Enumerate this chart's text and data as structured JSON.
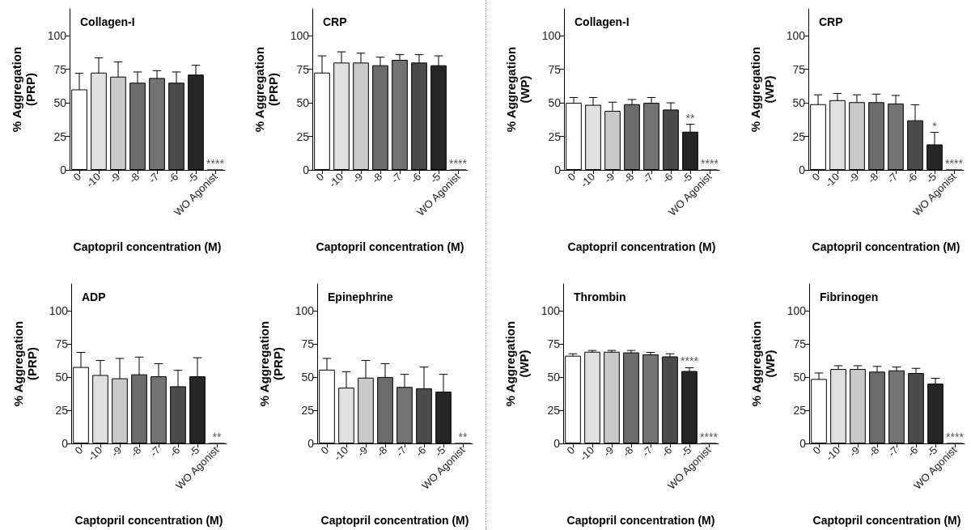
{
  "chart_data": [
    {
      "type": "bar",
      "title": "Collagen-I",
      "xlabel": "Captopril concentration (M)",
      "ylabel": "% Aggregation\n(PRP)",
      "categories": [
        "0",
        "-10",
        "-9",
        "-8",
        "-7",
        "-6",
        "-5",
        "WO Agonist"
      ],
      "values": [
        60,
        72.5,
        69.5,
        65,
        68.5,
        65,
        71,
        0
      ],
      "errors": [
        12,
        11,
        11,
        8,
        5.5,
        8,
        7,
        null
      ],
      "colors": [
        "#ffffff",
        "#e0e0e0",
        "#c9c9c9",
        "#6c6c6c",
        "#737373",
        "#4b4b4b",
        "#262626",
        "#262626"
      ],
      "ylim": [
        0,
        120
      ],
      "yticks": [
        0,
        25,
        50,
        75,
        100
      ],
      "annotations": [
        {
          "text": "****",
          "x": "WO Agonist",
          "y": 0
        }
      ]
    },
    {
      "type": "bar",
      "title": "CRP",
      "xlabel": "Captopril concentration (M)",
      "ylabel": "% Aggregation\n(PRP)",
      "categories": [
        "0",
        "-10",
        "-9",
        "-8",
        "-7",
        "-6",
        "-5",
        "WO Agonist"
      ],
      "values": [
        72.5,
        80,
        80,
        78,
        82,
        80,
        78,
        0
      ],
      "errors": [
        12.5,
        8,
        7,
        6,
        4,
        6,
        7,
        null
      ],
      "colors": [
        "#ffffff",
        "#e0e0e0",
        "#c9c9c9",
        "#6c6c6c",
        "#737373",
        "#4b4b4b",
        "#262626",
        "#262626"
      ],
      "ylim": [
        0,
        120
      ],
      "yticks": [
        0,
        25,
        50,
        75,
        100
      ],
      "annotations": [
        {
          "text": "****",
          "x": "WO Agonist",
          "y": 0
        }
      ]
    },
    {
      "type": "bar",
      "title": "Collagen-I",
      "xlabel": "Captopril concentration (M)",
      "ylabel": "% Aggregation\n(WP)",
      "categories": [
        "0",
        "-10",
        "-9",
        "-8",
        "-7",
        "-6",
        "-5",
        "WO Agonist"
      ],
      "values": [
        50,
        48.5,
        44,
        49,
        50,
        45,
        28.5,
        0
      ],
      "errors": [
        4,
        5.5,
        6.5,
        3.5,
        4,
        5,
        5.5,
        null
      ],
      "colors": [
        "#ffffff",
        "#e0e0e0",
        "#c9c9c9",
        "#6c6c6c",
        "#737373",
        "#4b4b4b",
        "#262626",
        "#262626"
      ],
      "ylim": [
        0,
        120
      ],
      "yticks": [
        0,
        25,
        50,
        75,
        100
      ],
      "annotations": [
        {
          "text": "**",
          "x": "-5",
          "y": 28.5
        },
        {
          "text": "****",
          "x": "WO Agonist",
          "y": 0
        }
      ]
    },
    {
      "type": "bar",
      "title": "CRP",
      "xlabel": "Captopril concentration (M)",
      "ylabel": "% Aggregation\n(WP)",
      "categories": [
        "0",
        "-10",
        "-9",
        "-8",
        "-7",
        "-6",
        "-5",
        "WO Agonist"
      ],
      "values": [
        49,
        52,
        50.5,
        50.5,
        49.5,
        37,
        19,
        0
      ],
      "errors": [
        7,
        5,
        5.5,
        6,
        6,
        11.5,
        9,
        null
      ],
      "colors": [
        "#ffffff",
        "#e0e0e0",
        "#c9c9c9",
        "#6c6c6c",
        "#737373",
        "#4b4b4b",
        "#262626",
        "#262626"
      ],
      "ylim": [
        0,
        120
      ],
      "yticks": [
        0,
        25,
        50,
        75,
        100
      ],
      "annotations": [
        {
          "text": "*",
          "x": "-5",
          "y": 19
        },
        {
          "text": "****",
          "x": "WO Agonist",
          "y": 0
        }
      ]
    },
    {
      "type": "bar",
      "title": "ADP",
      "xlabel": "Captopril concentration (M)",
      "ylabel": "% Aggregation\n(PRP)",
      "categories": [
        "0",
        "-10",
        "-9",
        "-8",
        "-7",
        "-6",
        "-5",
        "WO Agonist"
      ],
      "values": [
        57.5,
        51.5,
        49,
        52,
        50.5,
        43,
        50.5,
        0
      ],
      "errors": [
        11,
        11,
        15,
        13,
        9.5,
        12,
        14,
        null
      ],
      "colors": [
        "#ffffff",
        "#e0e0e0",
        "#c9c9c9",
        "#6c6c6c",
        "#737373",
        "#4b4b4b",
        "#262626",
        "#262626"
      ],
      "ylim": [
        0,
        120
      ],
      "yticks": [
        0,
        25,
        50,
        75,
        100
      ],
      "annotations": [
        {
          "text": "**",
          "x": "WO Agonist",
          "y": 0
        }
      ]
    },
    {
      "type": "bar",
      "title": "Epinephrine",
      "xlabel": "Captopril concentration (M)",
      "ylabel": "% Aggregation\n(PRP)",
      "categories": [
        "0",
        "-10",
        "-9",
        "-8",
        "-7",
        "-6",
        "-5",
        "WO Agonist"
      ],
      "values": [
        55.5,
        42,
        49.5,
        50,
        42.5,
        41.5,
        39,
        0
      ],
      "errors": [
        8.5,
        12,
        13,
        10,
        9.5,
        16,
        13,
        null
      ],
      "colors": [
        "#ffffff",
        "#e0e0e0",
        "#c9c9c9",
        "#6c6c6c",
        "#737373",
        "#4b4b4b",
        "#262626",
        "#262626"
      ],
      "ylim": [
        0,
        120
      ],
      "yticks": [
        0,
        25,
        50,
        75,
        100
      ],
      "annotations": [
        {
          "text": "**",
          "x": "WO Agonist",
          "y": 0
        }
      ]
    },
    {
      "type": "bar",
      "title": "Thrombin",
      "xlabel": "Captopril concentration (M)",
      "ylabel": "% Aggregation\n(WP)",
      "categories": [
        "0",
        "-10",
        "-9",
        "-8",
        "-7",
        "-6",
        "-5",
        "WO Agonist"
      ],
      "values": [
        66,
        69,
        69,
        68.5,
        67,
        65.5,
        54.5,
        0
      ],
      "errors": [
        1.5,
        1,
        1,
        1.5,
        1.5,
        2,
        2.5,
        null
      ],
      "colors": [
        "#ffffff",
        "#e0e0e0",
        "#c9c9c9",
        "#6c6c6c",
        "#737373",
        "#4b4b4b",
        "#262626",
        "#262626"
      ],
      "ylim": [
        0,
        120
      ],
      "yticks": [
        0,
        25,
        50,
        75,
        100
      ],
      "annotations": [
        {
          "text": "****",
          "x": "-5",
          "y": 54.5
        },
        {
          "text": "****",
          "x": "WO Agonist",
          "y": 0
        }
      ]
    },
    {
      "type": "bar",
      "title": "Fibrinogen",
      "xlabel": "Captopril concentration (M)",
      "ylabel": "% Aggregation\n(WP)",
      "categories": [
        "0",
        "-10",
        "-9",
        "-8",
        "-7",
        "-6",
        "-5",
        "WO Agonist"
      ],
      "values": [
        48.5,
        56,
        56,
        54,
        55,
        53,
        45,
        0
      ],
      "errors": [
        4.5,
        2.5,
        2.5,
        4,
        2.5,
        3.5,
        4,
        null
      ],
      "colors": [
        "#ffffff",
        "#e0e0e0",
        "#c9c9c9",
        "#6c6c6c",
        "#737373",
        "#4b4b4b",
        "#262626",
        "#262626"
      ],
      "ylim": [
        0,
        120
      ],
      "yticks": [
        0,
        25,
        50,
        75,
        100
      ],
      "annotations": [
        {
          "text": "****",
          "x": "WO Agonist",
          "y": 0
        }
      ]
    }
  ]
}
